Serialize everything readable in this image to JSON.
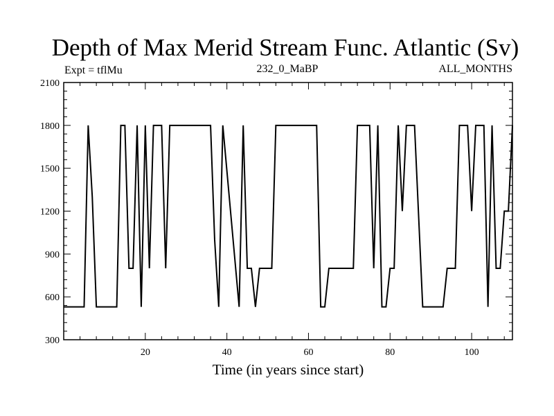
{
  "chart_data": {
    "type": "line",
    "title": "Depth of Max Merid Stream Func. Atlantic (Sv)",
    "subtitle_left": "Expt = tflMu",
    "subtitle_center": "232_0_MaBP",
    "subtitle_right": "ALL_MONTHS",
    "xlabel": "Time (in years since start)",
    "ylabel": "",
    "xlim": [
      0,
      110
    ],
    "ylim": [
      300,
      2100
    ],
    "xticks": [
      20,
      40,
      60,
      80,
      100
    ],
    "yticks": [
      300,
      600,
      900,
      1200,
      1500,
      1800,
      2100
    ],
    "grid": false,
    "series": [
      {
        "x": [
          0,
          5,
          6,
          7,
          8,
          9,
          13,
          14,
          15,
          16,
          17,
          18,
          19,
          20,
          21,
          22,
          23,
          24,
          25,
          26,
          36,
          37,
          38,
          39,
          43,
          44,
          45,
          46,
          47,
          48,
          51,
          52,
          62,
          63,
          64,
          65,
          71,
          72,
          74,
          75,
          76,
          77,
          78,
          79,
          80,
          81,
          82,
          83,
          84,
          85,
          86,
          88,
          93,
          94,
          96,
          97,
          99,
          100,
          101,
          102,
          103,
          104,
          105,
          106,
          107,
          108,
          109,
          110
        ],
        "values": [
          530,
          530,
          1800,
          1300,
          530,
          530,
          530,
          1800,
          1800,
          800,
          800,
          1800,
          530,
          1800,
          800,
          1800,
          1800,
          1800,
          800,
          1800,
          1800,
          1000,
          530,
          1800,
          530,
          1800,
          800,
          800,
          530,
          800,
          800,
          1800,
          1800,
          530,
          530,
          800,
          800,
          1800,
          1800,
          1800,
          800,
          1800,
          530,
          530,
          800,
          800,
          1800,
          1200,
          1800,
          1800,
          1800,
          530,
          530,
          800,
          800,
          1800,
          1800,
          1200,
          1800,
          1800,
          1800,
          530,
          1800,
          800,
          800,
          1200,
          1200,
          1800
        ]
      }
    ]
  }
}
